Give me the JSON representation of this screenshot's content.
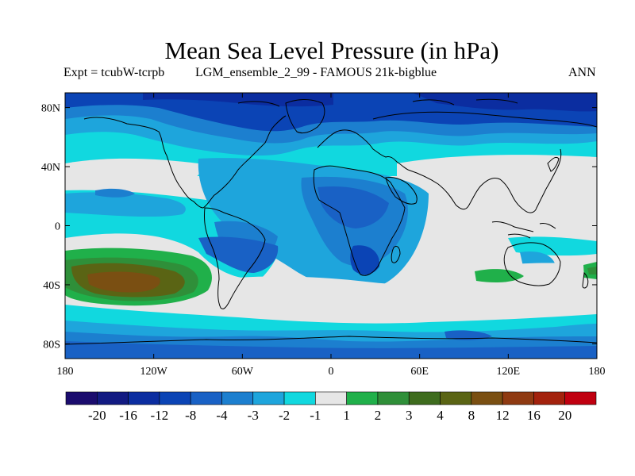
{
  "title": "Mean Sea Level Pressure (in hPa)",
  "subtitle_left": "Expt = tcubW-tcrpb",
  "subtitle_middle": "LGM_ensemble_2_99 - FAMOUS 21k-bigblue",
  "subtitle_right": "ANN",
  "map": {
    "projection": "cylindrical equidistant",
    "lon_range": [
      -180,
      180
    ],
    "lat_range": [
      -90,
      90
    ],
    "lon_ticks": [
      {
        "value": -180,
        "label": "180"
      },
      {
        "value": -120,
        "label": "120W"
      },
      {
        "value": -60,
        "label": "60W"
      },
      {
        "value": 0,
        "label": "0"
      },
      {
        "value": 60,
        "label": "60E"
      },
      {
        "value": 120,
        "label": "120E"
      },
      {
        "value": 180,
        "label": "180"
      }
    ],
    "lat_ticks": [
      {
        "value": 80,
        "label": "80N"
      },
      {
        "value": 40,
        "label": "40N"
      },
      {
        "value": 0,
        "label": "0"
      },
      {
        "value": -40,
        "label": "40S"
      },
      {
        "value": -80,
        "label": "80S"
      }
    ]
  },
  "colorbar": {
    "colors": [
      "#1b0c6e",
      "#121a82",
      "#0b2da0",
      "#0b44b5",
      "#1961c5",
      "#1c7fcf",
      "#1ea5dc",
      "#11d8df",
      "#e6e6e6",
      "#20b04a",
      "#2f8f39",
      "#3e6c1e",
      "#5a6414",
      "#7a4f12",
      "#8f3a12",
      "#a3220d",
      "#c00010"
    ],
    "labels": [
      "-20",
      "-16",
      "-12",
      "-8",
      "-4",
      "-3",
      "-2",
      "-1",
      "1",
      "2",
      "3",
      "4",
      "8",
      "12",
      "16",
      "20"
    ]
  }
}
